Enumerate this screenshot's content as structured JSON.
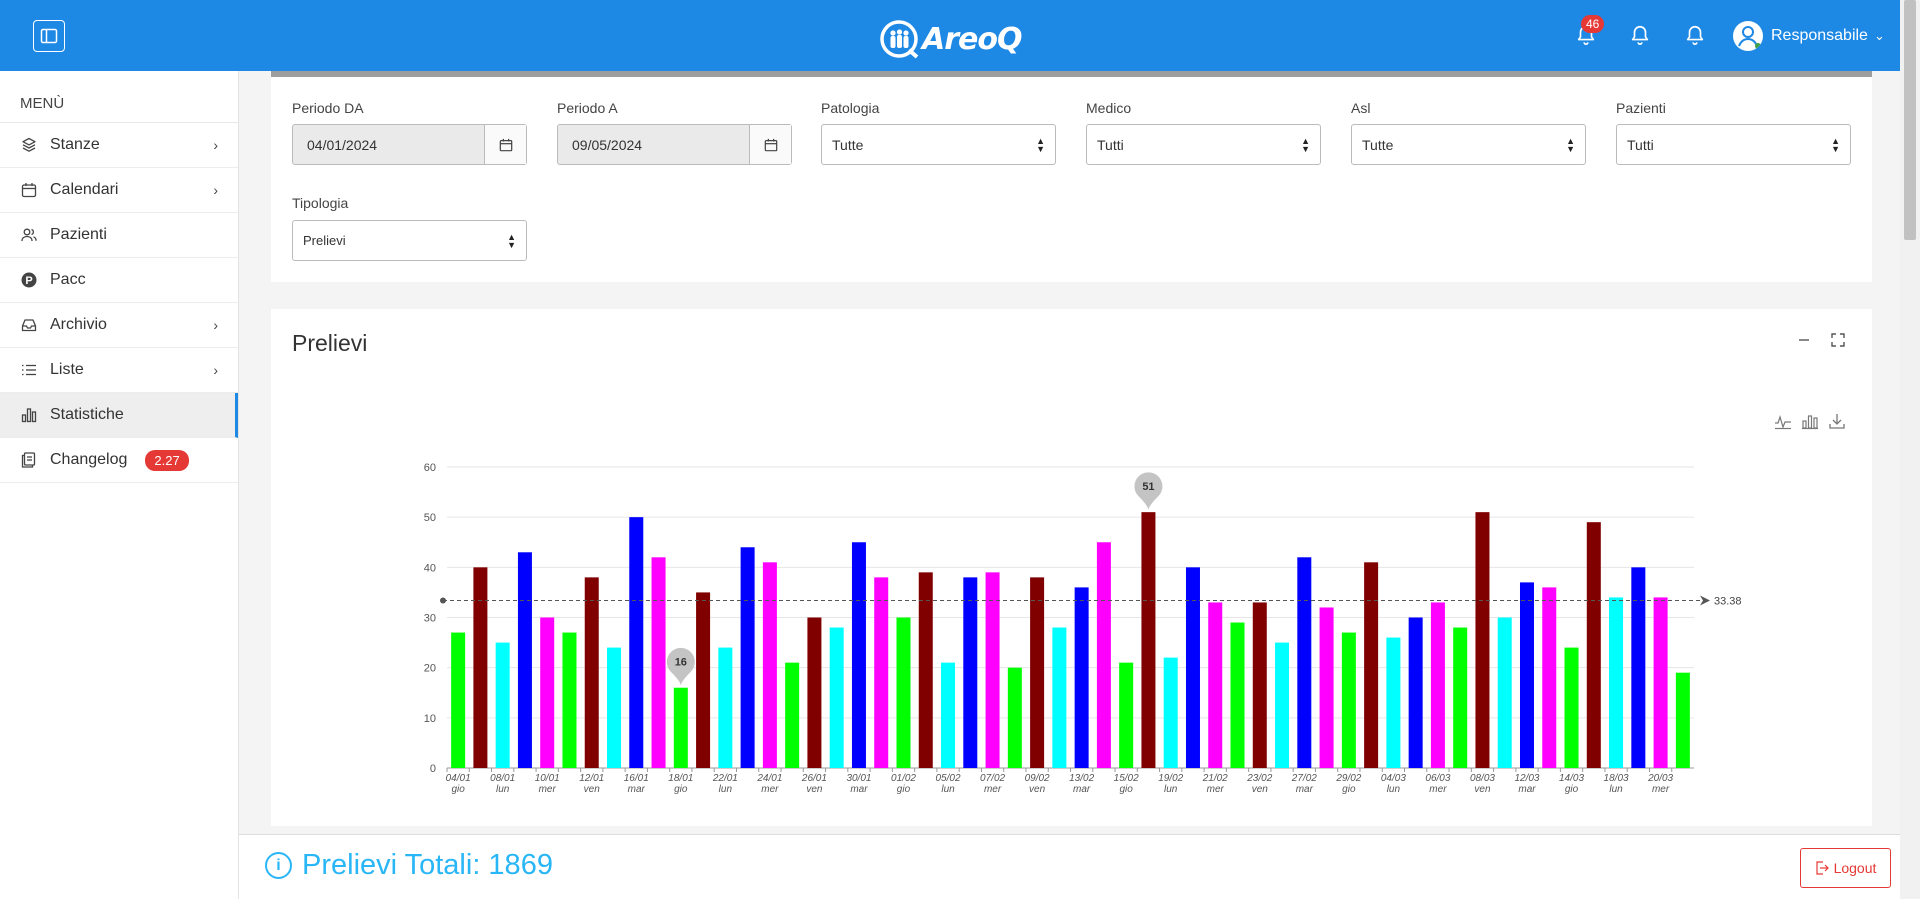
{
  "topbar": {
    "logo_text": "AreoQ",
    "notification_count": "46",
    "user_name": "Responsabile",
    "user_chevron": "⌄"
  },
  "sidebar": {
    "title": "MENÙ",
    "items": [
      {
        "label": "Stanze",
        "icon": "cube-icon",
        "chevron": "›"
      },
      {
        "label": "Calendari",
        "icon": "calendar-icon",
        "chevron": "›"
      },
      {
        "label": "Pazienti",
        "icon": "users-icon",
        "chevron": ""
      },
      {
        "label": "Pacc",
        "icon": "p-circle-icon",
        "chevron": ""
      },
      {
        "label": "Archivio",
        "icon": "inbox-icon",
        "chevron": "›"
      },
      {
        "label": "Liste",
        "icon": "list-icon",
        "chevron": "›"
      },
      {
        "label": "Statistiche",
        "icon": "bar-chart-icon",
        "chevron": ""
      },
      {
        "label": "Changelog",
        "icon": "changelog-icon",
        "chevron": "",
        "badge": "2.27"
      }
    ]
  },
  "filters": {
    "periodo_da_label": "Periodo DA",
    "periodo_da_value": "04/01/2024",
    "periodo_a_label": "Periodo A",
    "periodo_a_value": "09/05/2024",
    "patologia_label": "Patologia",
    "patologia_value": "Tutte",
    "medico_label": "Medico",
    "medico_value": "Tutti",
    "asl_label": "Asl",
    "asl_value": "Tutte",
    "pazienti_label": "Pazienti",
    "pazienti_value": "Tutti",
    "tipologia_label": "Tipologia",
    "tipologia_value": "Prelievi"
  },
  "chart_card": {
    "title": "Prelievi"
  },
  "chart_data": {
    "type": "bar",
    "ylim": [
      0,
      60
    ],
    "yticks": [
      0,
      10,
      20,
      30,
      40,
      50,
      60
    ],
    "colors": [
      "#00ff00",
      "#800000",
      "#00ffff",
      "#0000ff",
      "#ff00ff"
    ],
    "values": [
      27,
      40,
      25,
      43,
      30,
      27,
      38,
      24,
      50,
      42,
      16,
      35,
      24,
      44,
      41,
      21,
      30,
      28,
      45,
      38,
      30,
      39,
      21,
      38,
      39,
      20,
      38,
      28,
      36,
      45,
      21,
      51,
      22,
      40,
      33,
      29,
      33,
      25,
      42,
      32,
      27,
      41,
      26,
      30,
      33,
      28,
      51,
      30,
      37,
      36,
      24,
      49,
      34,
      40,
      34,
      19
    ],
    "xlabels": [
      {
        "date": "04/01",
        "day": "gio"
      },
      {
        "date": "08/01",
        "day": "lun"
      },
      {
        "date": "10/01",
        "day": "mer"
      },
      {
        "date": "12/01",
        "day": "ven"
      },
      {
        "date": "16/01",
        "day": "mar"
      },
      {
        "date": "18/01",
        "day": "gio"
      },
      {
        "date": "22/01",
        "day": "lun"
      },
      {
        "date": "24/01",
        "day": "mer"
      },
      {
        "date": "26/01",
        "day": "ven"
      },
      {
        "date": "30/01",
        "day": "mar"
      },
      {
        "date": "01/02",
        "day": "gio"
      },
      {
        "date": "05/02",
        "day": "lun"
      },
      {
        "date": "07/02",
        "day": "mer"
      },
      {
        "date": "09/02",
        "day": "ven"
      },
      {
        "date": "13/02",
        "day": "mar"
      },
      {
        "date": "15/02",
        "day": "gio"
      },
      {
        "date": "19/02",
        "day": "lun"
      },
      {
        "date": "21/02",
        "day": "mer"
      },
      {
        "date": "23/02",
        "day": "ven"
      },
      {
        "date": "27/02",
        "day": "mar"
      },
      {
        "date": "29/02",
        "day": "gio"
      },
      {
        "date": "04/03",
        "day": "lun"
      },
      {
        "date": "06/03",
        "day": "mer"
      },
      {
        "date": "08/03",
        "day": "ven"
      },
      {
        "date": "12/03",
        "day": "mar"
      },
      {
        "date": "14/03",
        "day": "gio"
      },
      {
        "date": "18/03",
        "day": "lun"
      },
      {
        "date": "20/03",
        "day": "mer"
      }
    ],
    "average": 33.38,
    "average_label": "33.38",
    "max_marker": "51",
    "min_marker": "16"
  },
  "footer": {
    "totals_text": "Prelievi Totali: 1869",
    "logout_label": "Logout"
  }
}
